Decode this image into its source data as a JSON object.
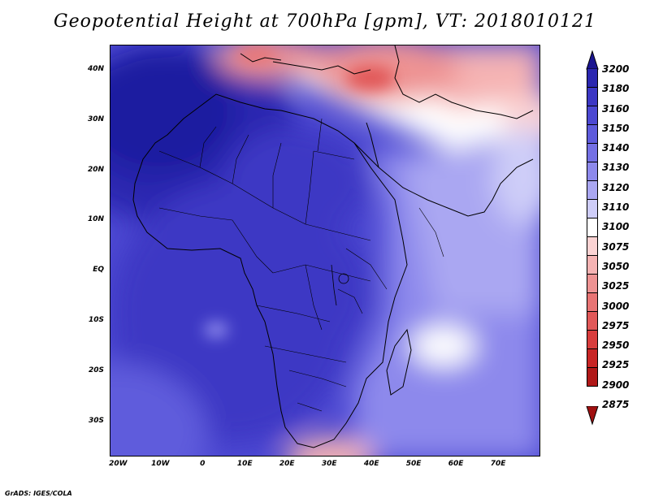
{
  "title": "Geopotential Height at 700hPa [gpm], VT: 2018010121",
  "credit": "GrADS: IGES/COLA",
  "lat_labels": [
    {
      "text": "40N",
      "lat": 40
    },
    {
      "text": "30N",
      "lat": 30
    },
    {
      "text": "20N",
      "lat": 20
    },
    {
      "text": "10N",
      "lat": 10
    },
    {
      "text": "EQ",
      "lat": 0
    },
    {
      "text": "10S",
      "lat": -10
    },
    {
      "text": "20S",
      "lat": -20
    },
    {
      "text": "30S",
      "lat": -30
    }
  ],
  "lon_labels": [
    {
      "text": "20W",
      "lon": -20
    },
    {
      "text": "10W",
      "lon": -10
    },
    {
      "text": "0",
      "lon": 0
    },
    {
      "text": "10E",
      "lon": 10
    },
    {
      "text": "20E",
      "lon": 20
    },
    {
      "text": "30E",
      "lon": 30
    },
    {
      "text": "40E",
      "lon": 40
    },
    {
      "text": "50E",
      "lon": 50
    },
    {
      "text": "60E",
      "lon": 60
    },
    {
      "text": "70E",
      "lon": 70
    }
  ],
  "extent": {
    "lon_min": -22,
    "lon_max": 80,
    "lat_min": -37,
    "lat_max": 45
  },
  "colorbar": {
    "levels": [
      "3200",
      "3180",
      "3160",
      "3150",
      "3140",
      "3130",
      "3120",
      "3110",
      "3100",
      "3075",
      "3050",
      "3025",
      "3000",
      "2975",
      "2950",
      "2925",
      "2900",
      "2875"
    ],
    "colors": [
      "#1f1aa0",
      "#2b27b0",
      "#3c37c4",
      "#4c48d2",
      "#5e5bdc",
      "#7470e4",
      "#8d89ec",
      "#aaa7f2",
      "#cecdf8",
      "#ffffff",
      "#fbd3d3",
      "#f5b3b3",
      "#ee9393",
      "#e87474",
      "#e15858",
      "#d83c3c",
      "#c82525",
      "#b01818"
    ],
    "top_arrow_color": "#1a1590",
    "bottom_arrow_color": "#a01010"
  }
}
